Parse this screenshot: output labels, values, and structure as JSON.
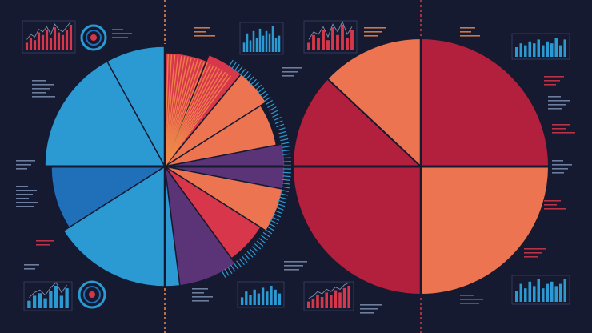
{
  "colors": {
    "background": "#161a30",
    "red": "#d8364a",
    "crimson": "#b3203e",
    "salmon": "#ec7451",
    "orange": "#f08a4b",
    "purple": "#5b3478",
    "cyan": "#2c9ad2",
    "blue": "#1f6fb9",
    "text_dim": "#7d8fb2",
    "guide_red": "#d23a45",
    "guide_orange": "#f08a4b"
  },
  "chart_data": [
    {
      "type": "pie",
      "id": "left-pie",
      "series": [
        {
          "name": "",
          "values": [
            8,
            6,
            5,
            5,
            6,
            6,
            6,
            6,
            8,
            18,
            9,
            17
          ]
        }
      ],
      "slice_colors": [
        "cyan",
        "red",
        "red",
        "salmon",
        "salmon",
        "purple",
        "salmon",
        "red",
        "purple",
        "cyan",
        "blue",
        "cyan"
      ],
      "slice_labels": [
        "",
        "",
        "",
        "",
        "",
        "",
        "",
        "",
        "",
        "",
        "",
        ""
      ]
    },
    {
      "type": "pie",
      "id": "right-pie",
      "series": [
        {
          "name": "",
          "values": [
            25,
            25,
            25,
            12,
            13
          ]
        }
      ],
      "slice_colors": [
        "crimson",
        "salmon",
        "crimson",
        "crimson",
        "salmon"
      ]
    },
    {
      "type": "bar",
      "id": "mini-bar-1",
      "values": [
        3,
        5,
        4,
        7,
        6,
        8,
        5,
        9,
        7,
        6,
        8,
        10
      ]
    },
    {
      "type": "bar",
      "id": "mini-bar-2",
      "values": [
        4,
        8,
        5,
        9,
        6,
        10,
        7,
        9,
        8,
        11,
        6,
        7
      ]
    },
    {
      "type": "bar",
      "id": "mini-bar-3",
      "values": [
        3,
        6,
        5,
        8,
        4,
        9,
        6,
        10,
        5,
        8
      ]
    },
    {
      "type": "bar",
      "id": "mini-bar-4",
      "values": [
        5,
        7,
        6,
        8,
        7,
        9,
        6,
        8,
        7,
        10,
        6,
        9
      ]
    },
    {
      "type": "bar",
      "id": "mini-bar-5",
      "values": [
        3,
        5,
        6,
        4,
        7,
        9,
        5,
        8
      ]
    },
    {
      "type": "bar",
      "id": "mini-bar-6",
      "values": [
        4,
        7,
        5,
        8,
        6,
        9,
        7,
        10,
        8,
        6
      ]
    },
    {
      "type": "bar",
      "id": "mini-bar-7",
      "values": [
        3,
        4,
        6,
        5,
        7,
        6,
        8,
        7,
        9,
        10
      ]
    },
    {
      "type": "bar",
      "id": "mini-bar-8",
      "values": [
        5,
        8,
        6,
        9,
        7,
        10,
        6,
        8,
        9,
        7,
        8,
        10
      ]
    }
  ]
}
